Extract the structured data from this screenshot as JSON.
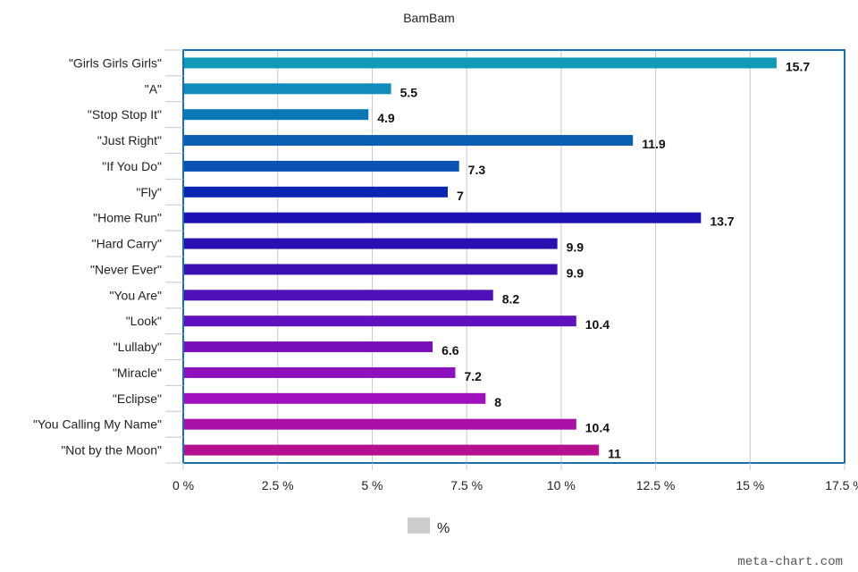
{
  "chart_data": {
    "type": "bar",
    "orientation": "horizontal",
    "title": "BamBam",
    "categories": [
      "\"Girls Girls Girls\"",
      "\"A\"",
      "\"Stop Stop It\"",
      "\"Just Right\"",
      "\"If You Do\"",
      "\"Fly\"",
      "\"Home Run\"",
      "\"Hard Carry\"",
      "\"Never Ever\"",
      "\"You Are\"",
      "\"Look\"",
      "\"Lullaby\"",
      "\"Miracle\"",
      "\"Eclipse\"",
      "\"You Calling My Name\"",
      "\"Not by the Moon\""
    ],
    "data_labels": [
      "15.7",
      "5.5",
      "4.9",
      "11.9",
      "7.3",
      "7",
      "13.7",
      "9.9",
      "9.9",
      "8.2",
      "10.4",
      "6.6",
      "7.2",
      "8",
      "10.4",
      "11"
    ],
    "series": [
      {
        "name": "%",
        "values": [
          15.7,
          5.5,
          4.9,
          11.9,
          7.3,
          7,
          13.7,
          9.9,
          9.9,
          8.2,
          10.4,
          6.6,
          7.2,
          8,
          10.4,
          11
        ]
      }
    ],
    "bar_colors": [
      "#0f9ab8",
      "#0f8cbc",
      "#0b78b6",
      "#0a5fb4",
      "#0a52b4",
      "#0a25b4",
      "#1f10b4",
      "#2a10b0",
      "#3a10b4",
      "#5010b8",
      "#6010bc",
      "#7a10bc",
      "#8c10bc",
      "#a010bc",
      "#a810a8",
      "#b41090"
    ],
    "xlim": [
      0,
      17.5
    ],
    "xticks": [
      "0 %",
      "2.5 %",
      "5 %",
      "7.5 %",
      "10 %",
      "12.5 %",
      "15 %",
      "17.5 %"
    ],
    "grid": true,
    "legend": {
      "position": "bottom",
      "label": "%",
      "color": "#cccccc"
    },
    "frame_color": "#1a6fb0",
    "gridline_color": "#c8c8c8"
  },
  "watermark": "meta-chart.com"
}
